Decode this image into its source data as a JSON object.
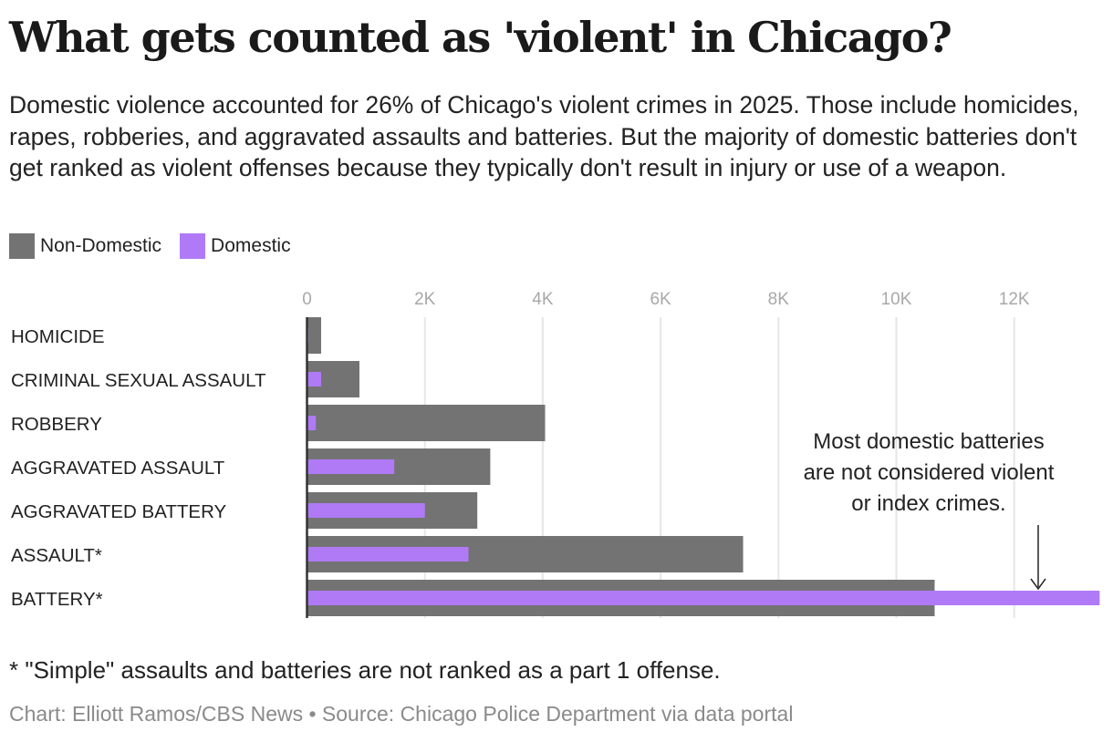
{
  "title": "What gets counted as 'violent' in Chicago?",
  "subtitle": "Domestic violence accounted for 26% of Chicago's violent crimes in 2025. Those include homicides, rapes, robberies, and aggravated assaults and batteries. But the majority of domestic batteries don't get ranked as violent offenses because they typically don't result in injury or use of a weapon.",
  "footnote": "* \"Simple\" assaults and batteries are not ranked as a part 1 offense.",
  "credit": "Chart: Elliott Ramos/CBS News • Source: Chicago Police Department via data portal",
  "chart_data": {
    "type": "bar",
    "orientation": "horizontal",
    "categories": [
      "HOMICIDE",
      "CRIMINAL SEXUAL ASSAULT",
      "ROBBERY",
      "AGGRAVATED ASSAULT",
      "AGGRAVATED BATTERY",
      "ASSAULT*",
      "BATTERY*"
    ],
    "series": [
      {
        "name": "Non-Domestic",
        "color": "#737373",
        "values": [
          240,
          890,
          4040,
          3110,
          2890,
          7400,
          10650
        ]
      },
      {
        "name": "Domestic",
        "color": "#b07af7",
        "values": [
          25,
          240,
          150,
          1480,
          2000,
          2740,
          13450
        ]
      }
    ],
    "xticks": [
      0,
      2000,
      4000,
      6000,
      8000,
      10000,
      12000
    ],
    "xtick_labels": [
      "0",
      "2K",
      "4K",
      "6K",
      "8K",
      "10K",
      "12K"
    ],
    "xlim": [
      0,
      13400
    ],
    "grid": true,
    "legend": "top-left",
    "annotation": [
      "Most domestic batteries",
      "are not considered violent",
      "or index crimes."
    ]
  }
}
